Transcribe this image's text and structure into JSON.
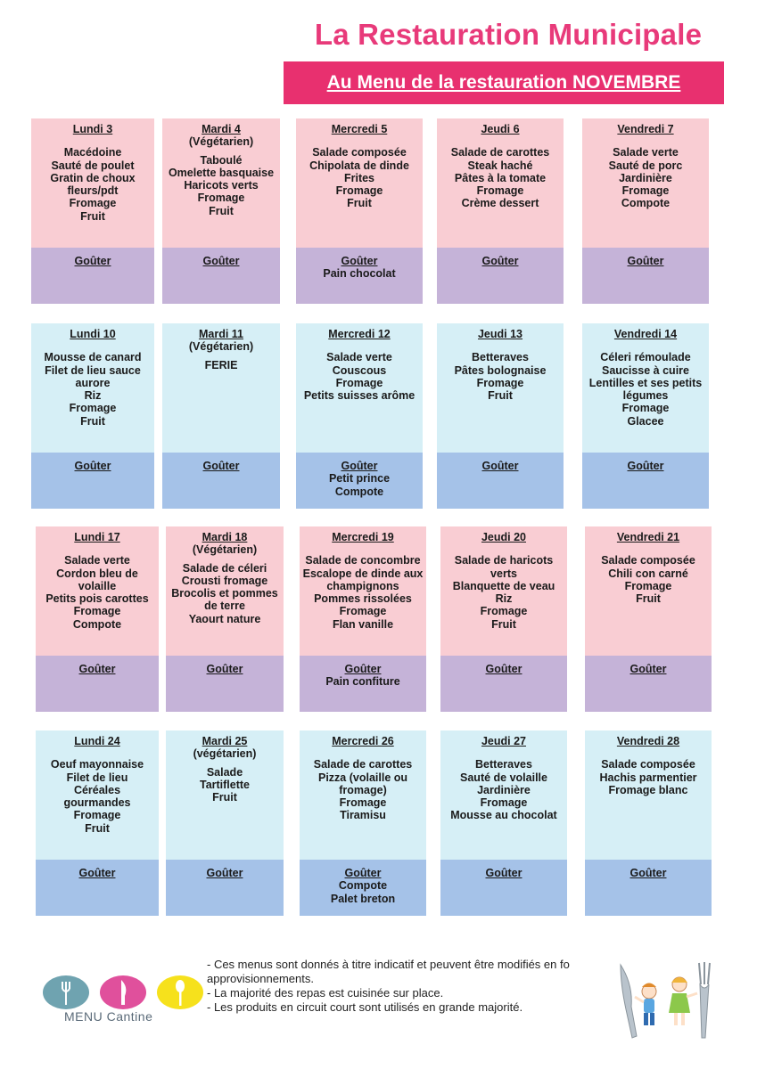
{
  "title": "La Restauration Municipale",
  "subtitle": "Au Menu de la restauration NOVEMBRE",
  "weeks": [
    [
      {
        "day": "Lundi 3",
        "veg": "",
        "items": [
          "Macédoine",
          "Sauté de poulet",
          "Gratin de choux",
          "fleurs/pdt",
          "Fromage",
          "Fruit"
        ],
        "gouter": "Goûter",
        "gouter_items": []
      },
      {
        "day": "Mardi  4",
        "veg": "(Végétarien)",
        "items": [
          "Taboulé",
          "Omelette basquaise",
          "Haricots verts",
          "Fromage",
          "Fruit"
        ],
        "gouter": "Goûter",
        "gouter_items": []
      },
      {
        "day": "Mercredi 5",
        "veg": "",
        "items": [
          "Salade composée",
          "Chipolata de dinde",
          "Frites",
          "Fromage",
          "Fruit"
        ],
        "gouter": "Goûter",
        "gouter_items": [
          "Pain chocolat"
        ]
      },
      {
        "day": "Jeudi 6",
        "veg": "",
        "items": [
          "Salade de carottes",
          "Steak haché",
          "Pâtes à la tomate",
          "Fromage",
          "Crème dessert"
        ],
        "gouter": "Goûter",
        "gouter_items": []
      },
      {
        "day": "Vendredi 7",
        "veg": "",
        "items": [
          "Salade verte",
          "Sauté de porc",
          "Jardinière",
          "Fromage",
          "Compote"
        ],
        "gouter": "Goûter",
        "gouter_items": []
      }
    ],
    [
      {
        "day": "Lundi 10",
        "veg": "",
        "items": [
          "Mousse de canard",
          "Filet de lieu sauce",
          "aurore",
          "Riz",
          "Fromage",
          "Fruit"
        ],
        "gouter": "Goûter",
        "gouter_items": []
      },
      {
        "day": "Mardi 11",
        "veg": "(Végétarien)",
        "items": [
          "FERIE"
        ],
        "gouter": "Goûter",
        "gouter_items": []
      },
      {
        "day": "Mercredi 12",
        "veg": "",
        "items": [
          "Salade verte",
          "Couscous",
          "Fromage",
          "Petits suisses arôme"
        ],
        "gouter": "Goûter",
        "gouter_items": [
          "Petit prince",
          "Compote"
        ]
      },
      {
        "day": "Jeudi 13",
        "veg": "",
        "items": [
          "Betteraves",
          "Pâtes bolognaise",
          "Fromage",
          "Fruit"
        ],
        "gouter": "Goûter",
        "gouter_items": []
      },
      {
        "day": "Vendredi 14",
        "veg": "",
        "items": [
          "Céleri rémoulade",
          "Saucisse à cuire",
          "Lentilles et ses petits",
          "légumes",
          "Fromage",
          "Glacee"
        ],
        "gouter": "Goûter",
        "gouter_items": []
      }
    ],
    [
      {
        "day": "Lundi 17",
        "veg": "",
        "items": [
          "Salade verte",
          "Cordon bleu de",
          "volaille",
          "Petits pois carottes",
          "Fromage",
          "Compote"
        ],
        "gouter": "Goûter",
        "gouter_items": []
      },
      {
        "day": "Mardi 18",
        "veg": "(Végétarien)",
        "items": [
          "Salade de céleri",
          "Crousti fromage",
          "Brocolis et pommes",
          "de terre",
          "Yaourt nature"
        ],
        "gouter": "Goûter",
        "gouter_items": []
      },
      {
        "day": "Mercredi 19",
        "veg": "",
        "items": [
          "Salade de concombre",
          "Escalope de dinde aux",
          "champignons",
          "Pommes rissolées",
          "Fromage",
          "Flan vanille"
        ],
        "gouter": "Goûter",
        "gouter_items": [
          "Pain confiture"
        ]
      },
      {
        "day": "Jeudi 20",
        "veg": "",
        "items": [
          "Salade de haricots",
          "verts",
          "Blanquette de veau",
          "Riz",
          "Fromage",
          "Fruit"
        ],
        "gouter": "Goûter",
        "gouter_items": []
      },
      {
        "day": "Vendredi 21",
        "veg": "",
        "items": [
          "Salade composée",
          "Chili con carné",
          "Fromage",
          "Fruit"
        ],
        "gouter": "Goûter",
        "gouter_items": []
      }
    ],
    [
      {
        "day": "Lundi 24",
        "veg": "",
        "items": [
          "Oeuf mayonnaise",
          "Filet de lieu",
          "Céréales",
          "gourmandes",
          "Fromage",
          "Fruit"
        ],
        "gouter": "Goûter",
        "gouter_items": []
      },
      {
        "day": "Mardi 25",
        "veg": "(végétarien)",
        "items": [
          "Salade",
          "Tartiflette",
          "Fruit"
        ],
        "gouter": "Goûter",
        "gouter_items": []
      },
      {
        "day": "Mercredi 26",
        "veg": "",
        "items": [
          "Salade de carottes",
          "Pizza (volaille ou",
          "fromage)",
          "Fromage",
          "Tiramisu"
        ],
        "gouter": "Goûter",
        "gouter_items": [
          "Compote",
          "Palet breton"
        ]
      },
      {
        "day": "Jeudi 27",
        "veg": "",
        "items": [
          "Betteraves",
          "Sauté de volaille",
          "Jardinière",
          "Fromage",
          "Mousse au chocolat"
        ],
        "gouter": "Goûter",
        "gouter_items": []
      },
      {
        "day": "Vendredi 28",
        "veg": "",
        "items": [
          "Salade composée",
          "Hachis parmentier",
          "Fromage blanc"
        ],
        "gouter": "Goûter",
        "gouter_items": []
      }
    ]
  ],
  "notes": [
    "- Ces menus sont donnés à titre indicatif et peuvent être modifiés en fo",
    "approvisionnements.",
    "- La majorité des repas est cuisinée sur place.",
    "- Les produits en circuit court sont utilisés en grande majorité."
  ],
  "logo": {
    "text": "MENU  Cantine",
    "colors": [
      "#6fa3b0",
      "#e0509c",
      "#f6e11c"
    ]
  },
  "colors": {
    "title": "#e83a7a",
    "banner": "#e8306f",
    "pink": "#f9cdd3",
    "purple": "#c5b3d8",
    "light_blue": "#d6eff6",
    "blue": "#a5c2e8"
  }
}
